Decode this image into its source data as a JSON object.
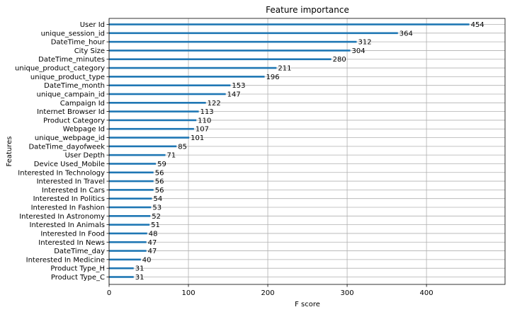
{
  "chart_data": {
    "type": "bar",
    "orientation": "horizontal",
    "title": "Feature importance",
    "xlabel": "F score",
    "ylabel": "Features",
    "xlim": [
      0,
      499
    ],
    "xticks": [
      0,
      100,
      200,
      300,
      400
    ],
    "grid": true,
    "bar_color": "#1f77b4",
    "categories": [
      "User Id",
      "unique_session_id",
      "DateTime_hour",
      "City Size",
      "DateTime_minutes",
      "unique_product_category",
      "unique_product_type",
      "DateTime_month",
      "unique_campain_id",
      "Campaign Id",
      "Internet Browser Id",
      "Product Category",
      "Webpage Id",
      "unique_webpage_id",
      "DateTime_dayofweek",
      "User Depth",
      "Device Used_Mobile",
      "Interested In Technology",
      "Interested In Travel",
      "Interested In Cars",
      "Interested In Politics",
      "Interested In Fashion",
      "Interested In Astronomy",
      "Interested In Animals",
      "Interested In Food",
      "Interested In News",
      "DateTime_day",
      "Interested In Medicine",
      "Product Type_H",
      "Product Type_C"
    ],
    "values": [
      454,
      364,
      312,
      304,
      280,
      211,
      196,
      153,
      147,
      122,
      113,
      110,
      107,
      101,
      85,
      71,
      59,
      56,
      56,
      56,
      54,
      53,
      52,
      51,
      48,
      47,
      47,
      40,
      31,
      31
    ]
  }
}
